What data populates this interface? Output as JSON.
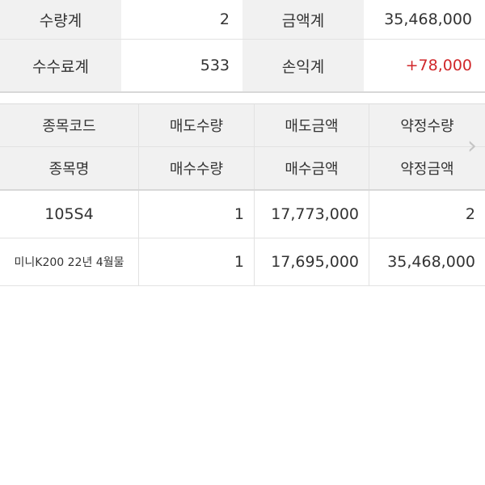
{
  "summary": {
    "rows": [
      [
        {
          "label": "수량계",
          "value": "2"
        },
        {
          "label": "금액계",
          "value": "35,468,000"
        }
      ],
      [
        {
          "label": "수수료계",
          "value": "533"
        },
        {
          "label": "손익계",
          "value": "+78,000"
        }
      ]
    ],
    "profit_color": "#d0272a"
  },
  "table": {
    "header_row1": [
      "종목코드",
      "매도수량",
      "매도금액",
      "약정수량"
    ],
    "header_row2": [
      "종목명",
      "매수수량",
      "매수금액",
      "약정금액"
    ],
    "row1": [
      "105S4",
      "1",
      "17,773,000",
      "2"
    ],
    "row2": [
      "미니K200 22년 4월물",
      "1",
      "17,695,000",
      "35,468,000"
    ],
    "scroll_icon": "chevron-right-icon"
  }
}
